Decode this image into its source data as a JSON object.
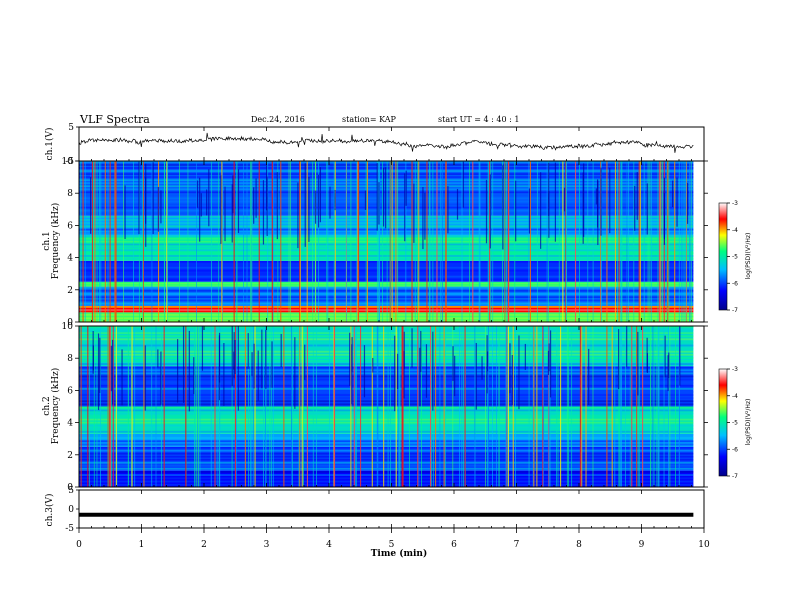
{
  "header": {
    "title": "VLF Spectra",
    "date": "Dec.24, 2016",
    "station": "station= KAP",
    "start_time": "start  UT =   4 : 40 : 1"
  },
  "colors": {
    "colormap": [
      "#00008b",
      "#0000ff",
      "#00bfff",
      "#00ff7f",
      "#ffff00",
      "#ff0000",
      "#ffffff"
    ],
    "trace": "#000000"
  },
  "chart_data": [
    {
      "type": "line",
      "id": "ch1-waveform",
      "ylabel": "ch.1(V)",
      "ylim": [
        -5,
        5
      ],
      "yticks": [
        "5",
        "-5"
      ],
      "x_range_min": [
        0,
        9.83
      ],
      "note_values": "noisy trace around y ≈ 0.5 V with spikes up to ≈ ±2 V"
    },
    {
      "type": "heatmap",
      "id": "ch1-spectrogram",
      "ylabel_top": "ch.1",
      "ylabel": "Frequency (kHz)",
      "ylim": [
        0,
        10
      ],
      "yticks": [
        "0",
        "2",
        "4",
        "6",
        "8",
        "10"
      ],
      "x_range_min": [
        0,
        9.83
      ],
      "colorbar": {
        "label": "log(PSD)(V²/Hz)",
        "range": [
          -7,
          -3
        ],
        "ticks": [
          "-3",
          "-4",
          "-5",
          "-6",
          "-7"
        ]
      },
      "bands_khz_level": [
        {
          "from": 0.0,
          "to": 0.6,
          "level": -4.5
        },
        {
          "from": 0.6,
          "to": 1.0,
          "level": -3.6
        },
        {
          "from": 1.0,
          "to": 2.2,
          "level": -5.8
        },
        {
          "from": 2.2,
          "to": 2.5,
          "level": -4.6
        },
        {
          "from": 2.5,
          "to": 3.8,
          "level": -6.1
        },
        {
          "from": 3.8,
          "to": 5.4,
          "level": -5.0
        },
        {
          "from": 5.4,
          "to": 6.6,
          "level": -5.6
        },
        {
          "from": 6.6,
          "to": 10.0,
          "level": -5.9
        }
      ]
    },
    {
      "type": "heatmap",
      "id": "ch2-spectrogram",
      "ylabel_top": "ch.2",
      "ylabel": "Frequency (kHz)",
      "ylim": [
        0,
        10
      ],
      "yticks": [
        "0",
        "2",
        "4",
        "6",
        "8",
        "10"
      ],
      "x_range_min": [
        0,
        9.83
      ],
      "colorbar": {
        "label": "log(PSD)(V²/Hz)",
        "range": [
          -7,
          -3
        ],
        "ticks": [
          "-3",
          "-4",
          "-5",
          "-6",
          "-7"
        ]
      },
      "bands_khz_level": [
        {
          "from": 0.0,
          "to": 1.0,
          "level": -6.3
        },
        {
          "from": 1.0,
          "to": 2.5,
          "level": -6.0
        },
        {
          "from": 2.5,
          "to": 3.3,
          "level": -5.6
        },
        {
          "from": 3.3,
          "to": 5.0,
          "level": -5.1
        },
        {
          "from": 5.0,
          "to": 7.5,
          "level": -6.0
        },
        {
          "from": 7.5,
          "to": 10.0,
          "level": -5.2
        }
      ]
    },
    {
      "type": "line",
      "id": "ch3-waveform",
      "ylabel": "ch.3(V)",
      "ylim": [
        -5,
        5
      ],
      "yticks": [
        "5",
        "0",
        "-5"
      ],
      "x_range_min": [
        0,
        9.83
      ],
      "value": -1.5
    }
  ],
  "xaxis": {
    "label": "Time  (min)",
    "range": [
      0,
      10
    ],
    "ticks": [
      "0",
      "1",
      "2",
      "3",
      "4",
      "5",
      "6",
      "7",
      "8",
      "9",
      "10"
    ]
  }
}
